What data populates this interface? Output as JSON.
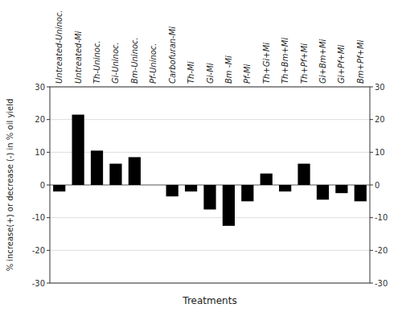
{
  "chart_data": {
    "type": "bar",
    "categories": [
      "Untreated-Uninoc.",
      "Untreated-Mi",
      "Th-Uninoc.",
      "Gi-Uninoc.",
      "Bm-Uninoc.",
      "Pf-Uninoc.",
      "Carbofuran-Mi",
      "Th-Mi",
      "Gi-Mi",
      "Bm -Mi",
      "Pf-Mi",
      "Th+Gi+Mi",
      "Th+Bm+Mi",
      "Th+Pf+Mi",
      "Gi+Bm+Mi",
      "Gi+Pf+Mi",
      "Bm+Pf+Mi"
    ],
    "values": [
      -2.0,
      21.5,
      10.5,
      6.5,
      8.5,
      0.0,
      -3.5,
      -2.0,
      -7.5,
      -12.5,
      -5.0,
      3.5,
      -2.0,
      6.5,
      -4.5,
      -2.5,
      -5.0
    ],
    "color": "#000000",
    "xlabel": "Treatments",
    "ylabel": "% increase(+) or decrease (-) in % oil yield",
    "ylim": [
      -30,
      30
    ],
    "yticks": [
      -30,
      -20,
      -10,
      0,
      10,
      20,
      30
    ],
    "y2lim": [
      -30,
      30
    ],
    "y2ticks": [
      -30,
      -20,
      -10,
      0,
      10,
      20,
      30
    ],
    "grid": true
  }
}
